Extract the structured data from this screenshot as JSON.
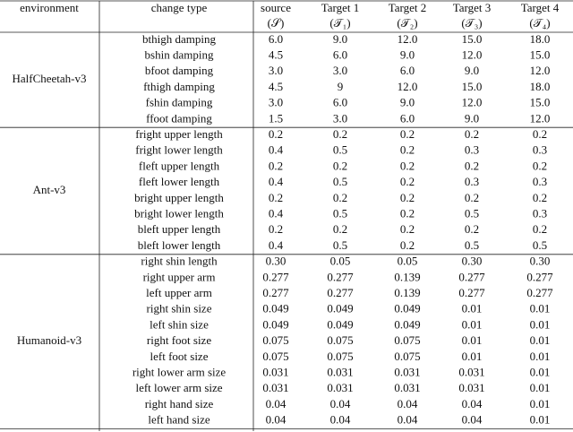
{
  "header": {
    "environment": "environment",
    "change_type": "change type",
    "columns": [
      {
        "name": "source",
        "symbol": "(𝒮)"
      },
      {
        "name": "Target 1",
        "symbol": "(𝒯₁)"
      },
      {
        "name": "Target 2",
        "symbol": "(𝒯₂)"
      },
      {
        "name": "Target 3",
        "symbol": "(𝒯₃)"
      },
      {
        "name": "Target 4",
        "symbol": "(𝒯₄)"
      }
    ]
  },
  "groups": [
    {
      "environment": "HalfCheetah-v3",
      "rows": [
        [
          "bthigh damping",
          "6.0",
          "9.0",
          "12.0",
          "15.0",
          "18.0"
        ],
        [
          "bshin damping",
          "4.5",
          "6.0",
          "9.0",
          "12.0",
          "15.0"
        ],
        [
          "bfoot damping",
          "3.0",
          "3.0",
          "6.0",
          "9.0",
          "12.0"
        ],
        [
          "fthigh damping",
          "4.5",
          "9",
          "12.0",
          "15.0",
          "18.0"
        ],
        [
          "fshin damping",
          "3.0",
          "6.0",
          "9.0",
          "12.0",
          "15.0"
        ],
        [
          "ffoot damping",
          "1.5",
          "3.0",
          "6.0",
          "9.0",
          "12.0"
        ]
      ]
    },
    {
      "environment": "Ant-v3",
      "rows": [
        [
          "fright upper length",
          "0.2",
          "0.2",
          "0.2",
          "0.2",
          "0.2"
        ],
        [
          "fright lower length",
          "0.4",
          "0.5",
          "0.2",
          "0.3",
          "0.3"
        ],
        [
          "fleft upper length",
          "0.2",
          "0.2",
          "0.2",
          "0.2",
          "0.2"
        ],
        [
          "fleft lower length",
          "0.4",
          "0.5",
          "0.2",
          "0.3",
          "0.3"
        ],
        [
          "bright upper length",
          "0.2",
          "0.2",
          "0.2",
          "0.2",
          "0.2"
        ],
        [
          "bright lower length",
          "0.4",
          "0.5",
          "0.2",
          "0.5",
          "0.3"
        ],
        [
          "bleft upper length",
          "0.2",
          "0.2",
          "0.2",
          "0.2",
          "0.2"
        ],
        [
          "bleft lower length",
          "0.4",
          "0.5",
          "0.2",
          "0.5",
          "0.5"
        ]
      ]
    },
    {
      "environment": "Humanoid-v3",
      "rows": [
        [
          "right shin length",
          "0.30",
          "0.05",
          "0.05",
          "0.30",
          "0.30"
        ],
        [
          "right upper arm",
          "0.277",
          "0.277",
          "0.139",
          "0.277",
          "0.277"
        ],
        [
          "left upper arm",
          "0.277",
          "0.277",
          "0.139",
          "0.277",
          "0.277"
        ],
        [
          "right shin size",
          "0.049",
          "0.049",
          "0.049",
          "0.01",
          "0.01"
        ],
        [
          "left shin size",
          "0.049",
          "0.049",
          "0.049",
          "0.01",
          "0.01"
        ],
        [
          "right foot size",
          "0.075",
          "0.075",
          "0.075",
          "0.01",
          "0.01"
        ],
        [
          "left foot size",
          "0.075",
          "0.075",
          "0.075",
          "0.01",
          "0.01"
        ],
        [
          "right lower arm size",
          "0.031",
          "0.031",
          "0.031",
          "0.031",
          "0.01"
        ],
        [
          "left lower arm size",
          "0.031",
          "0.031",
          "0.031",
          "0.031",
          "0.01"
        ],
        [
          "right hand size",
          "0.04",
          "0.04",
          "0.04",
          "0.04",
          "0.01"
        ],
        [
          "left hand size",
          "0.04",
          "0.04",
          "0.04",
          "0.04",
          "0.01"
        ]
      ]
    }
  ]
}
